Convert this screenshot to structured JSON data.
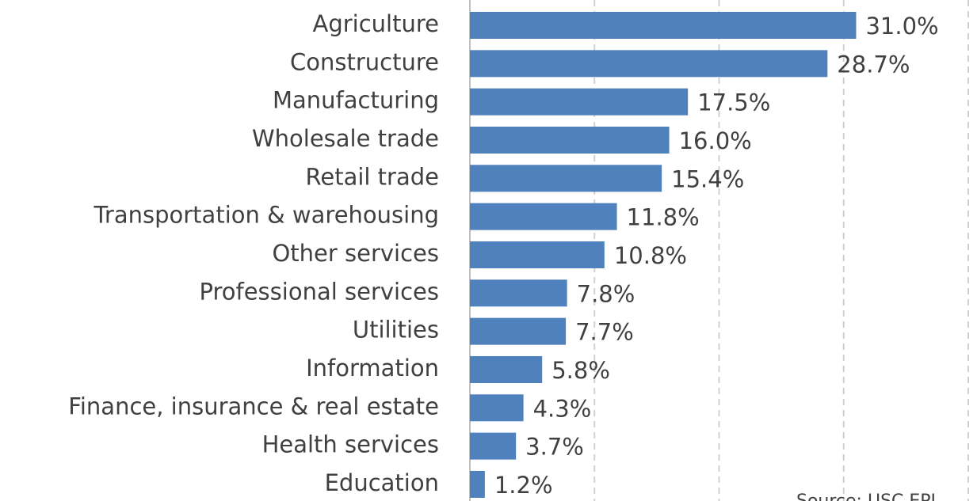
{
  "chart_data": {
    "type": "barh",
    "categories": [
      "Agriculture",
      "Constructure",
      "Manufacturing",
      "Wholesale trade",
      "Retail trade",
      "Transportation & warehousing",
      "Other services",
      "Professional services",
      "Utilities",
      "Information",
      "Finance, insurance & real estate",
      "Health services",
      "Education"
    ],
    "values": [
      31.0,
      28.7,
      17.5,
      16.0,
      15.4,
      11.8,
      10.8,
      7.8,
      7.7,
      5.8,
      4.3,
      3.7,
      1.2
    ],
    "value_labels": [
      "31.0%",
      "28.7%",
      "17.5%",
      "16.0%",
      "15.4%",
      "11.8%",
      "10.8%",
      "7.8%",
      "7.7%",
      "5.8%",
      "4.3%",
      "3.7%",
      "1.2%"
    ],
    "color": "#4f81bd",
    "xlim": [
      0,
      40
    ],
    "xticks": [
      0,
      10,
      20,
      30,
      40
    ],
    "grid": true,
    "source": "Source: USC EPI"
  }
}
